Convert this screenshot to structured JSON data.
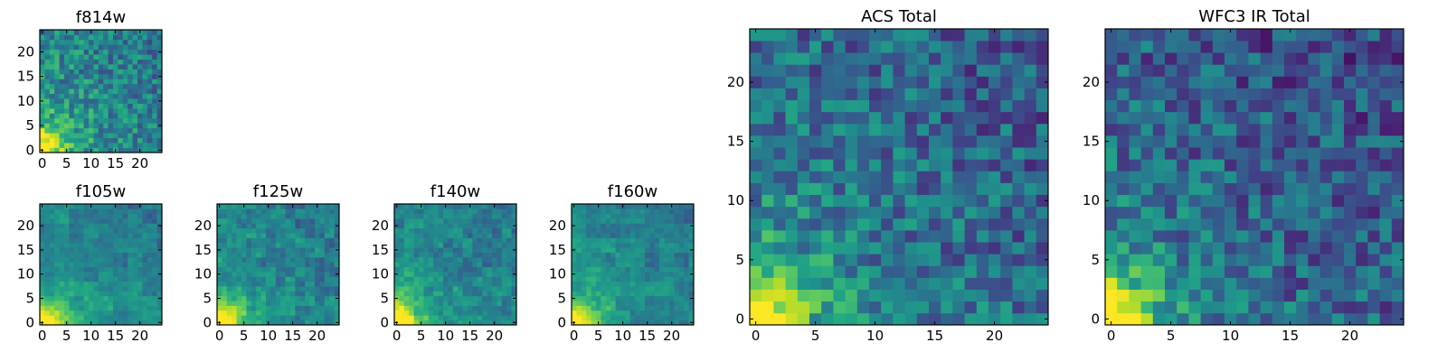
{
  "chart_data": [
    {
      "type": "heatmap",
      "title": "f814w",
      "seed": 814,
      "grad": 0.55,
      "contrast": 0.4,
      "block": 1,
      "xticks": [
        0,
        5,
        10,
        15,
        20
      ],
      "yticks": [
        0,
        5,
        10,
        15,
        20
      ],
      "xlim": [
        -0.5,
        24.5
      ],
      "ylim": [
        -0.5,
        24.5
      ],
      "colormap": "viridis"
    },
    {
      "type": "heatmap",
      "title": "f105w",
      "seed": 105,
      "grad": 0.55,
      "contrast": 0.3,
      "block": 3,
      "xticks": [
        0,
        5,
        10,
        15,
        20
      ],
      "yticks": [
        0,
        5,
        10,
        15,
        20
      ],
      "xlim": [
        -0.5,
        24.5
      ],
      "ylim": [
        -0.5,
        24.5
      ],
      "colormap": "viridis"
    },
    {
      "type": "heatmap",
      "title": "f125w",
      "seed": 125,
      "grad": 0.55,
      "contrast": 0.36,
      "block": 2,
      "xticks": [
        0,
        5,
        10,
        15,
        20
      ],
      "yticks": [
        0,
        5,
        10,
        15,
        20
      ],
      "xlim": [
        -0.5,
        24.5
      ],
      "ylim": [
        -0.5,
        24.5
      ],
      "colormap": "viridis"
    },
    {
      "type": "heatmap",
      "title": "f140w",
      "seed": 140,
      "grad": 0.55,
      "contrast": 0.33,
      "block": 2,
      "xticks": [
        0,
        5,
        10,
        15,
        20
      ],
      "yticks": [
        0,
        5,
        10,
        15,
        20
      ],
      "xlim": [
        -0.5,
        24.5
      ],
      "ylim": [
        -0.5,
        24.5
      ],
      "colormap": "viridis"
    },
    {
      "type": "heatmap",
      "title": "f160w",
      "seed": 160,
      "grad": 0.55,
      "contrast": 0.3,
      "block": 3,
      "xticks": [
        0,
        5,
        10,
        15,
        20
      ],
      "yticks": [
        0,
        5,
        10,
        15,
        20
      ],
      "xlim": [
        -0.5,
        24.5
      ],
      "ylim": [
        -0.5,
        24.5
      ],
      "colormap": "viridis"
    },
    {
      "type": "heatmap",
      "title": "ACS Total",
      "seed": 901,
      "grad": 0.45,
      "contrast": 0.42,
      "block": 1,
      "xticks": [
        0,
        5,
        10,
        15,
        20
      ],
      "yticks": [
        0,
        5,
        10,
        15,
        20
      ],
      "xlim": [
        -0.5,
        24.5
      ],
      "ylim": [
        -0.5,
        24.5
      ],
      "colormap": "viridis"
    },
    {
      "type": "heatmap",
      "title": "WFC3 IR Total",
      "seed": 902,
      "grad": 0.4,
      "contrast": 0.42,
      "block": 1,
      "xticks": [
        0,
        5,
        10,
        15,
        20
      ],
      "yticks": [
        0,
        5,
        10,
        15,
        20
      ],
      "xlim": [
        -0.5,
        24.5
      ],
      "ylim": [
        -0.5,
        24.5
      ],
      "colormap": "viridis"
    }
  ]
}
